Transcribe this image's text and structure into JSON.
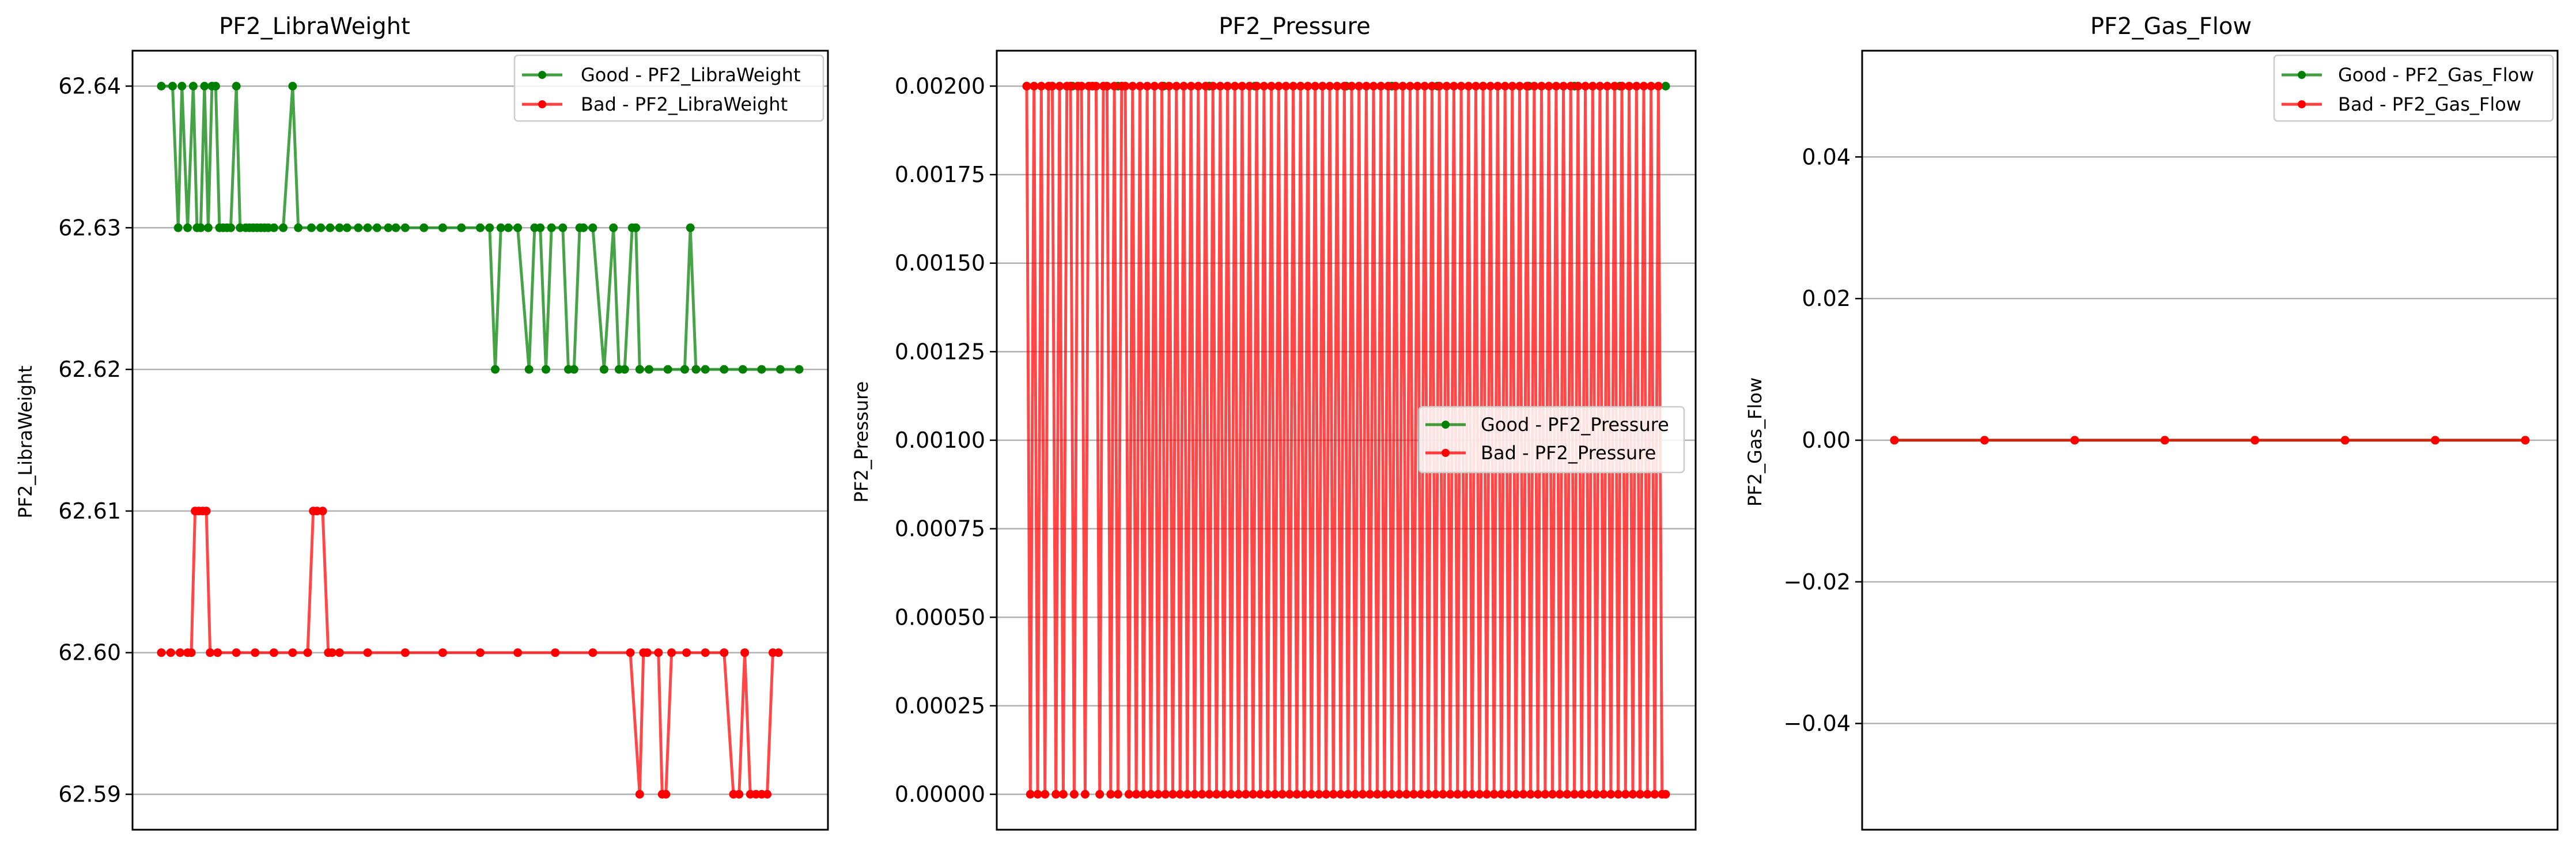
{
  "chart_data": [
    {
      "type": "line",
      "title": "PF2_LibraWeight",
      "xlabel": "",
      "ylabel": "PF2_LibraWeight",
      "ylim": [
        62.5875,
        62.6425
      ],
      "yticks": [
        62.59,
        62.6,
        62.61,
        62.62,
        62.63,
        62.64
      ],
      "ytick_labels": [
        "62.59",
        "62.60",
        "62.61",
        "62.62",
        "62.63",
        "62.64"
      ],
      "grid": "horizontal",
      "legend_position": "top-right",
      "series": [
        {
          "name": "Good - PF2_LibraWeight",
          "color": "#008000",
          "x": [
            0,
            6,
            9,
            11,
            14,
            17,
            19,
            21,
            23,
            25,
            27,
            29,
            31,
            33,
            35,
            37,
            40,
            42,
            45,
            47,
            49,
            51,
            53,
            55,
            57,
            60,
            65,
            70,
            73,
            80,
            85,
            90,
            95,
            99,
            105,
            110,
            115,
            121,
            125,
            130,
            140,
            150,
            160,
            170,
            175,
            178,
            181,
            185,
            190,
            196,
            199,
            202,
            205,
            208,
            214,
            217,
            220,
            223,
            225,
            230,
            236,
            241,
            244,
            247,
            251,
            253,
            255,
            260,
            270,
            279,
            282,
            285,
            290,
            300,
            310,
            320,
            330,
            340
          ],
          "values": [
            62.64,
            62.64,
            62.63,
            62.64,
            62.63,
            62.64,
            62.63,
            62.63,
            62.64,
            62.63,
            62.64,
            62.64,
            62.63,
            62.63,
            62.63,
            62.63,
            62.64,
            62.63,
            62.63,
            62.63,
            62.63,
            62.63,
            62.63,
            62.63,
            62.63,
            62.63,
            62.63,
            62.64,
            62.63,
            62.63,
            62.63,
            62.63,
            62.63,
            62.63,
            62.63,
            62.63,
            62.63,
            62.63,
            62.63,
            62.63,
            62.63,
            62.63,
            62.63,
            62.63,
            62.63,
            62.62,
            62.63,
            62.63,
            62.63,
            62.62,
            62.63,
            62.63,
            62.62,
            62.63,
            62.63,
            62.62,
            62.62,
            62.63,
            62.63,
            62.63,
            62.62,
            62.63,
            62.62,
            62.62,
            62.63,
            62.63,
            62.62,
            62.62,
            62.62,
            62.62,
            62.63,
            62.62,
            62.62,
            62.62,
            62.62,
            62.62,
            62.62,
            62.62
          ]
        },
        {
          "name": "Bad - PF2_LibraWeight",
          "color": "#ff0000",
          "x": [
            0,
            5,
            10,
            14,
            16,
            18,
            20,
            22,
            24,
            26,
            30,
            40,
            50,
            60,
            70,
            78,
            81,
            83,
            86,
            89,
            91,
            95,
            110,
            130,
            150,
            170,
            190,
            210,
            230,
            250,
            255,
            257,
            259,
            265,
            267,
            269,
            272,
            280,
            290,
            300,
            305,
            308,
            311,
            314,
            317,
            320,
            323,
            326,
            329
          ],
          "values": [
            62.6,
            62.6,
            62.6,
            62.6,
            62.6,
            62.61,
            62.61,
            62.61,
            62.61,
            62.6,
            62.6,
            62.6,
            62.6,
            62.6,
            62.6,
            62.6,
            62.61,
            62.61,
            62.61,
            62.6,
            62.6,
            62.6,
            62.6,
            62.6,
            62.6,
            62.6,
            62.6,
            62.6,
            62.6,
            62.6,
            62.59,
            62.6,
            62.6,
            62.6,
            62.59,
            62.59,
            62.6,
            62.6,
            62.6,
            62.6,
            62.59,
            62.59,
            62.6,
            62.59,
            62.59,
            62.59,
            62.59,
            62.6,
            62.6
          ]
        }
      ]
    },
    {
      "type": "line",
      "title": "PF2_Pressure",
      "xlabel": "",
      "ylabel": "PF2_Pressure",
      "ylim": [
        -0.0001,
        0.0021
      ],
      "yticks": [
        0,
        0.00025,
        0.0005,
        0.00075,
        0.001,
        0.00125,
        0.0015,
        0.00175,
        0.002
      ],
      "ytick_labels": [
        "0.00000",
        "0.00025",
        "0.00050",
        "0.00075",
        "0.00100",
        "0.00125",
        "0.00150",
        "0.00175",
        "0.00200"
      ],
      "grid": "horizontal",
      "legend_position": "center-right",
      "series": [
        {
          "name": "Good - PF2_Pressure",
          "color": "#008000",
          "x": [
            0,
            50,
            100,
            150,
            200,
            250,
            300,
            350,
            400,
            450,
            500,
            550,
            600,
            650,
            700
          ],
          "values": [
            0.002,
            0.002,
            0.002,
            0.002,
            0.002,
            0.002,
            0.002,
            0.002,
            0.002,
            0.002,
            0.002,
            0.002,
            0.002,
            0.002,
            0.002
          ]
        },
        {
          "name": "Bad - PF2_Pressure",
          "color": "#ff0000",
          "x": [
            0,
            4,
            8,
            12,
            16,
            20,
            24,
            28,
            32,
            36,
            40,
            44,
            48,
            52,
            56,
            60,
            64,
            68,
            72,
            76,
            80,
            84,
            88,
            92,
            96,
            100,
            104,
            108,
            112,
            116,
            120,
            124,
            128,
            132,
            136,
            140,
            144,
            148,
            152,
            156,
            160,
            164,
            168,
            172,
            176,
            180,
            184,
            188,
            192,
            196,
            200,
            204,
            208,
            212,
            216,
            220,
            224,
            228,
            232,
            236,
            240,
            244,
            248,
            252,
            256,
            260,
            264,
            268,
            272,
            276,
            280,
            284,
            288,
            292,
            296,
            300,
            304,
            308,
            312,
            316,
            320,
            324,
            328,
            332,
            336,
            340,
            344,
            348,
            352,
            356,
            360,
            364,
            368,
            372,
            376,
            380,
            384,
            388,
            392,
            396,
            400,
            404,
            408,
            412,
            416,
            420,
            424,
            428,
            432,
            436,
            440,
            444,
            448,
            452,
            456,
            460,
            464,
            468,
            472,
            476,
            480,
            484,
            488,
            492,
            496,
            500,
            504,
            508,
            512,
            516,
            520,
            524,
            528,
            532,
            536,
            540,
            544,
            548,
            552,
            556,
            560,
            564,
            568,
            572,
            576,
            580,
            584,
            588,
            592,
            596,
            600,
            604,
            608,
            612,
            616,
            620,
            624,
            628,
            632,
            636,
            640,
            644,
            648,
            652,
            656,
            660,
            664,
            668,
            672,
            676,
            680,
            684,
            688,
            692,
            696,
            700
          ],
          "values": [
            0.002,
            0,
            0.002,
            0,
            0.002,
            0,
            0.002,
            0.002,
            0,
            0.002,
            0,
            0.002,
            0.002,
            0,
            0.002,
            0.002,
            0,
            0.002,
            0.002,
            0.002,
            0,
            0.002,
            0.002,
            0,
            0.002,
            0,
            0.002,
            0.002,
            0,
            0.002,
            0,
            0.002,
            0,
            0.002,
            0,
            0.002,
            0,
            0.002,
            0,
            0.002,
            0,
            0.002,
            0,
            0.002,
            0,
            0.002,
            0,
            0.002,
            0,
            0.002,
            0,
            0.002,
            0,
            0.002,
            0,
            0.002,
            0,
            0.002,
            0,
            0.002,
            0,
            0.002,
            0,
            0.002,
            0,
            0.002,
            0,
            0.002,
            0,
            0.002,
            0,
            0.002,
            0,
            0.002,
            0,
            0.002,
            0,
            0.002,
            0,
            0.002,
            0,
            0.002,
            0,
            0.002,
            0,
            0.002,
            0,
            0.002,
            0,
            0.002,
            0,
            0.002,
            0,
            0.002,
            0,
            0.002,
            0,
            0.002,
            0,
            0.002,
            0,
            0.002,
            0,
            0.002,
            0,
            0.002,
            0,
            0.002,
            0,
            0.002,
            0,
            0.002,
            0,
            0.002,
            0,
            0.002,
            0,
            0.002,
            0,
            0.002,
            0,
            0.002,
            0,
            0.002,
            0,
            0.002,
            0,
            0.002,
            0,
            0.002,
            0,
            0.002,
            0,
            0.002,
            0,
            0.002,
            0,
            0.002,
            0,
            0.002,
            0,
            0.002,
            0,
            0.002,
            0,
            0.002,
            0,
            0.002,
            0,
            0.002,
            0,
            0.002,
            0,
            0.002,
            0,
            0.002,
            0,
            0.002,
            0,
            0.002,
            0,
            0.002,
            0,
            0.002,
            0,
            0.002,
            0,
            0.002,
            0,
            0.002,
            0,
            0.002,
            0,
            0.002,
            0,
            0
          ]
        }
      ]
    },
    {
      "type": "line",
      "title": "PF2_Gas_Flow",
      "xlabel": "",
      "ylabel": "PF2_Gas_Flow",
      "ylim": [
        -0.055,
        0.055
      ],
      "yticks": [
        -0.04,
        -0.02,
        0,
        0.02,
        0.04
      ],
      "ytick_labels": [
        "−0.04",
        "−0.02",
        "0.00",
        "0.02",
        "0.04"
      ],
      "grid": "horizontal",
      "legend_position": "top-right",
      "series": [
        {
          "name": "Good - PF2_Gas_Flow",
          "color": "#008000",
          "x": [
            0,
            100,
            200,
            300,
            400,
            500,
            600,
            700
          ],
          "values": [
            0,
            0,
            0,
            0,
            0,
            0,
            0,
            0
          ]
        },
        {
          "name": "Bad - PF2_Gas_Flow",
          "color": "#ff0000",
          "x": [
            0,
            100,
            200,
            300,
            400,
            500,
            600,
            700
          ],
          "values": [
            0,
            0,
            0,
            0,
            0,
            0,
            0,
            0
          ]
        }
      ]
    }
  ]
}
